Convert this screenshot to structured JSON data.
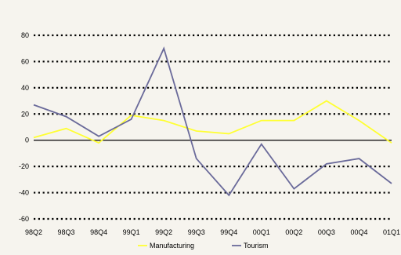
{
  "chart_data": {
    "type": "line",
    "categories": [
      "98Q2",
      "98Q3",
      "98Q4",
      "99Q1",
      "99Q2",
      "99Q3",
      "99Q4",
      "00Q1",
      "00Q2",
      "00Q3",
      "00Q4",
      "01Q1"
    ],
    "ylim": [
      -60,
      80
    ],
    "yticks": [
      80,
      60,
      40,
      20,
      0,
      -20,
      -40,
      -60
    ],
    "grid": "dotted-horizontal",
    "legend_position": "bottom",
    "series": [
      {
        "name": "Manufacturing",
        "color": "#ffff33",
        "values": [
          2,
          9,
          -2,
          19,
          15,
          7,
          5,
          15,
          15,
          30,
          15,
          -2
        ]
      },
      {
        "name": "Tourism",
        "color": "#6a6a9a",
        "values": [
          27,
          18,
          3,
          16,
          70,
          -14,
          -42,
          -3,
          -37,
          -18,
          -14,
          -33
        ]
      }
    ]
  }
}
